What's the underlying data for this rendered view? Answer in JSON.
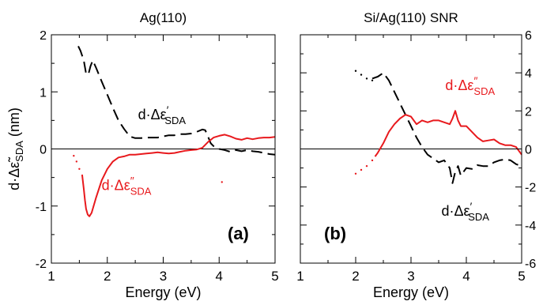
{
  "colors": {
    "real_part": "#000000",
    "imag_part": "#e8191d",
    "zero_line": "#000000"
  },
  "chart_data": [
    {
      "type": "line",
      "title": "Ag(110)",
      "xlabel": "Energy (eV)",
      "ylabel": "d·Δε̃SDA (nm)",
      "ylabel_main": "d·Δε̃",
      "ylabel_sub": "SDA",
      "ylabel_unit": " (nm)",
      "xlim": [
        1,
        5
      ],
      "ylim": [
        -2,
        2
      ],
      "x_ticks": [
        "1",
        "2",
        "3",
        "4",
        "5"
      ],
      "y_ticks": [
        "2",
        "1",
        "0",
        "-1",
        "-2"
      ],
      "y_axis_side": "left",
      "grid": false,
      "zero_line": true,
      "panel_label": "(a)",
      "series": [
        {
          "name": "d·Δε′SDA",
          "style": "dashed",
          "color": "#000000",
          "x": [
            1.48,
            1.52,
            1.58,
            1.62,
            1.66,
            1.7,
            1.74,
            1.8,
            1.9,
            2.0,
            2.1,
            2.2,
            2.3,
            2.4,
            2.5,
            2.6,
            2.7,
            2.8,
            2.9,
            3.0,
            3.1,
            3.2,
            3.3,
            3.4,
            3.5,
            3.6,
            3.7,
            3.75,
            3.8,
            3.85,
            3.9,
            4.0,
            4.1,
            4.2,
            4.3,
            4.4,
            4.5,
            4.6,
            4.7,
            4.8,
            4.9,
            5.0
          ],
          "y": [
            1.8,
            1.72,
            1.55,
            1.32,
            1.3,
            1.45,
            1.55,
            1.42,
            1.18,
            0.95,
            0.72,
            0.5,
            0.35,
            0.22,
            0.19,
            0.19,
            0.2,
            0.2,
            0.2,
            0.22,
            0.24,
            0.24,
            0.26,
            0.26,
            0.27,
            0.3,
            0.34,
            0.33,
            0.22,
            0.1,
            0.05,
            0.0,
            -0.02,
            -0.05,
            -0.02,
            -0.04,
            -0.02,
            -0.04,
            -0.05,
            -0.07,
            -0.09,
            -0.1
          ]
        },
        {
          "name": "d·Δε″SDA",
          "style": "solid",
          "color": "#e8191d",
          "x": [
            1.55,
            1.58,
            1.6,
            1.62,
            1.65,
            1.68,
            1.72,
            1.8,
            1.9,
            2.0,
            2.1,
            2.2,
            2.3,
            2.4,
            2.5,
            2.6,
            2.7,
            2.8,
            2.9,
            3.0,
            3.1,
            3.2,
            3.3,
            3.4,
            3.5,
            3.6,
            3.7,
            3.8,
            3.9,
            4.0,
            4.1,
            4.2,
            4.3,
            4.4,
            4.5,
            4.6,
            4.7,
            4.8,
            4.9,
            5.0
          ],
          "y": [
            -0.45,
            -0.7,
            -0.9,
            -1.05,
            -1.15,
            -1.18,
            -1.12,
            -0.85,
            -0.55,
            -0.35,
            -0.22,
            -0.15,
            -0.13,
            -0.1,
            -0.1,
            -0.09,
            -0.08,
            -0.07,
            -0.06,
            -0.07,
            -0.08,
            -0.07,
            -0.05,
            -0.03,
            -0.02,
            -0.01,
            0.02,
            0.12,
            0.2,
            0.23,
            0.25,
            0.22,
            0.18,
            0.16,
            0.19,
            0.17,
            0.19,
            0.2,
            0.2,
            0.21
          ]
        },
        {
          "name": "d·Δε″SDA low-energy dots",
          "style": "dotted",
          "color": "#e8191d",
          "x": [
            1.4,
            1.45,
            1.5
          ],
          "y": [
            -0.12,
            -0.22,
            -0.35
          ]
        },
        {
          "name": "isolated point",
          "style": "dotted",
          "color": "#e8191d",
          "x": [
            4.05
          ],
          "y": [
            -0.58
          ]
        }
      ],
      "annotations": [
        {
          "text": "d·Δε",
          "sup": "′",
          "sub": "SDA",
          "color": "#000000",
          "at_x": 2.55,
          "at_y": 0.52
        },
        {
          "text": "d·Δε",
          "sup": "″",
          "sub": "SDA",
          "color": "#e8191d",
          "at_x": 1.9,
          "at_y": -0.72
        }
      ]
    },
    {
      "type": "line",
      "title": "Si/Ag(110) SNR",
      "xlabel": "Energy (eV)",
      "ylabel": "",
      "xlim": [
        1,
        5
      ],
      "ylim": [
        -6,
        6
      ],
      "x_ticks": [
        "1",
        "2",
        "3",
        "4",
        "5"
      ],
      "y_ticks": [
        "6",
        "4",
        "2",
        "0",
        "-2",
        "-4",
        "-6"
      ],
      "y_axis_side": "right",
      "grid": false,
      "zero_line": true,
      "panel_label": "(b)",
      "series": [
        {
          "name": "d·Δε′SDA",
          "style": "dashed",
          "color": "#000000",
          "x": [
            2.3,
            2.4,
            2.5,
            2.6,
            2.7,
            2.8,
            2.9,
            3.0,
            3.1,
            3.2,
            3.3,
            3.4,
            3.5,
            3.6,
            3.7,
            3.75,
            3.8,
            3.85,
            3.9,
            4.0,
            4.1,
            4.2,
            4.3,
            4.4,
            4.5,
            4.6,
            4.7,
            4.8,
            4.9,
            5.0
          ],
          "y": [
            3.7,
            3.8,
            4.0,
            3.6,
            3.0,
            2.4,
            1.8,
            1.2,
            0.6,
            0.1,
            -0.3,
            -0.5,
            -0.7,
            -0.6,
            -1.0,
            -1.8,
            -1.2,
            -0.9,
            -1.4,
            -1.0,
            -1.05,
            -0.85,
            -0.9,
            -0.9,
            -0.7,
            -0.6,
            -0.55,
            -0.6,
            -0.8,
            -0.9
          ]
        },
        {
          "name": "d·Δε′SDA low-energy dots",
          "style": "dotted",
          "color": "#000000",
          "x": [
            2.0,
            2.1,
            2.2,
            2.3
          ],
          "y": [
            4.1,
            3.9,
            3.7,
            3.6
          ]
        },
        {
          "name": "d·Δε″SDA",
          "style": "solid",
          "color": "#e8191d",
          "x": [
            2.35,
            2.4,
            2.5,
            2.6,
            2.7,
            2.8,
            2.9,
            3.0,
            3.1,
            3.2,
            3.3,
            3.4,
            3.5,
            3.6,
            3.7,
            3.75,
            3.8,
            3.85,
            3.9,
            4.0,
            4.1,
            4.2,
            4.3,
            4.4,
            4.5,
            4.6,
            4.7,
            4.8,
            4.9,
            5.0
          ],
          "y": [
            -0.4,
            -0.2,
            0.3,
            0.9,
            1.3,
            1.6,
            1.8,
            1.7,
            1.3,
            1.5,
            1.4,
            1.5,
            1.5,
            1.4,
            1.3,
            1.6,
            2.0,
            1.5,
            1.2,
            1.2,
            0.9,
            0.6,
            0.4,
            0.45,
            0.5,
            0.3,
            0.2,
            0.2,
            0.1,
            -0.3
          ]
        },
        {
          "name": "d·Δε″SDA low-energy dots",
          "style": "dotted",
          "color": "#e8191d",
          "x": [
            2.0,
            2.1,
            2.2,
            2.3
          ],
          "y": [
            -1.3,
            -1.1,
            -0.9,
            -0.6
          ]
        }
      ],
      "annotations": [
        {
          "text": "d·Δε",
          "sup": "″",
          "sub": "SDA",
          "color": "#e8191d",
          "at_x": 3.62,
          "at_y": 3.1
        },
        {
          "text": "d·Δε",
          "sup": "′",
          "sub": "SDA",
          "color": "#000000",
          "at_x": 3.55,
          "at_y": -3.5
        }
      ]
    }
  ]
}
